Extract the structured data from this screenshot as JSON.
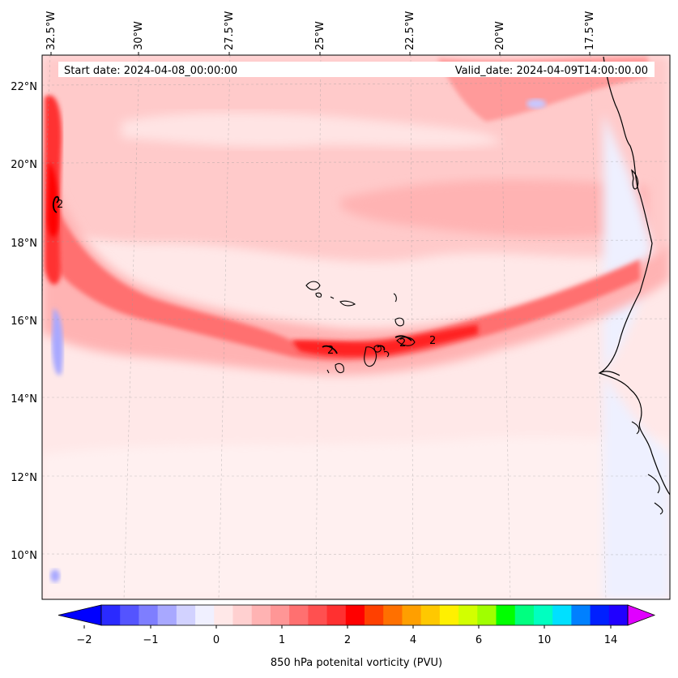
{
  "map": {
    "start_date": "Start date: 2024-04-08_00:00:00",
    "valid_date": "Valid_date: 2024-04-09T14:00:00.00",
    "lon_labels": [
      "32.5°W",
      "30°W",
      "27.5°W",
      "25°W",
      "22.5°W",
      "20°W",
      "17.5°W"
    ],
    "lat_labels": [
      "22°N",
      "20°N",
      "18°N",
      "16°N",
      "14°N",
      "12°N",
      "10°N"
    ],
    "contour_label": "2",
    "colors": {
      "background": "#ffe8e8",
      "land_low": "#eef0ff",
      "band_mid": "#ffb3b3",
      "band_high": "#ff3a3a",
      "coast": "#000000"
    }
  },
  "colorbar": {
    "label": "850 hPa potenital vorticity (PVU)",
    "ticks": [
      "−2",
      "−1",
      "0",
      "1",
      "2",
      "4",
      "6",
      "10",
      "14"
    ],
    "colors": [
      "#0000ff",
      "#2a2aff",
      "#5454ff",
      "#7e7eff",
      "#a8a8ff",
      "#d2d2ff",
      "#f0f0ff",
      "#ffe8e8",
      "#ffd0d0",
      "#ffb3b3",
      "#ff9696",
      "#ff7070",
      "#ff5050",
      "#ff3030",
      "#ff0000",
      "#ff4000",
      "#ff7000",
      "#ff9f00",
      "#ffc800",
      "#fff000",
      "#d2ff00",
      "#a0ff00",
      "#00ff00",
      "#00ff80",
      "#00ffc0",
      "#00e0ff",
      "#0080ff",
      "#0020ff",
      "#2000ff",
      "#8000ff"
    ],
    "over_color": "#e000ff"
  }
}
